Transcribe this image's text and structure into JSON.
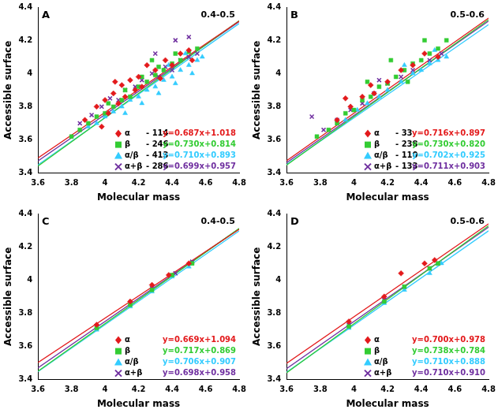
{
  "chart_data": [
    {
      "type": "scatter",
      "title": "A",
      "subtitle": "0.4-0.5",
      "x_label": "Molecular mass",
      "y_label": "Accessible surface",
      "xlim": [
        3.6,
        4.8
      ],
      "xticks": [
        3.6,
        3.8,
        4,
        4.2,
        4.4,
        4.6,
        4.8
      ],
      "ylim": [
        3.4,
        4.4
      ],
      "yticks": [
        3.4,
        3.6,
        3.8,
        4,
        4.2,
        4.4
      ],
      "grid": false,
      "legend": "lower right",
      "series": [
        {
          "name": "α",
          "color": "#e31a1c",
          "marker": "diamond",
          "count": 114,
          "count_label": "- 114",
          "fit": {
            "slope": 0.687,
            "intercept": 1.018,
            "label": "y=0.687x+1.018",
            "line_style": "solid"
          },
          "x": [
            3.88,
            3.95,
            4.0,
            4.02,
            4.05,
            4.08,
            4.1,
            4.12,
            4.15,
            4.18,
            4.2,
            4.22,
            4.25,
            4.3,
            4.33,
            4.36,
            4.4,
            4.45,
            4.5,
            4.52,
            3.98,
            4.06
          ],
          "values": [
            3.72,
            3.8,
            3.84,
            3.76,
            3.88,
            3.82,
            3.93,
            3.86,
            3.96,
            3.9,
            3.98,
            3.92,
            4.05,
            4.02,
            3.97,
            4.08,
            4.05,
            4.12,
            4.14,
            4.08,
            3.68,
            3.95
          ]
        },
        {
          "name": "β",
          "color": "#33cc33",
          "marker": "square",
          "count": 246,
          "count_label": "- 246",
          "fit": {
            "slope": 0.73,
            "intercept": 0.814,
            "label": "y=0.730x+0.814",
            "line_style": "solid"
          },
          "x": [
            3.8,
            3.85,
            3.9,
            3.95,
            4.0,
            4.02,
            4.05,
            4.1,
            4.12,
            4.15,
            4.2,
            4.22,
            4.25,
            4.3,
            4.32,
            4.35,
            4.4,
            4.42,
            4.45,
            4.5,
            4.55,
            4.28
          ],
          "values": [
            3.62,
            3.66,
            3.7,
            3.74,
            3.76,
            3.82,
            3.8,
            3.84,
            3.9,
            3.86,
            3.92,
            3.98,
            3.95,
            3.99,
            4.04,
            4.02,
            4.06,
            4.12,
            4.08,
            4.13,
            4.15,
            4.08
          ]
        },
        {
          "name": "α/β",
          "color": "#33ccff",
          "marker": "triangle",
          "count": 413,
          "count_label": "- 413",
          "fit": {
            "slope": 0.71,
            "intercept": 0.893,
            "label": "y=0.710x+0.893",
            "line_style": "solid"
          },
          "x": [
            3.9,
            3.95,
            4.0,
            4.05,
            4.1,
            4.12,
            4.15,
            4.2,
            4.22,
            4.25,
            4.3,
            4.32,
            4.35,
            4.4,
            4.42,
            4.45,
            4.5,
            4.52,
            4.55,
            4.58,
            4.38,
            4.48
          ],
          "values": [
            3.68,
            3.7,
            3.74,
            3.77,
            3.8,
            3.76,
            3.84,
            3.86,
            3.82,
            3.9,
            3.92,
            3.88,
            3.96,
            3.98,
            3.94,
            4.02,
            4.05,
            4.0,
            4.08,
            4.1,
            4.05,
            4.12
          ]
        },
        {
          "name": "α+β",
          "color": "#7030a0",
          "marker": "x",
          "count": 286,
          "count_label": "- 286",
          "fit": {
            "slope": 0.699,
            "intercept": 0.957,
            "label": "y=0.699x+0.957",
            "line_style": "solid"
          },
          "x": [
            3.85,
            3.92,
            3.98,
            4.03,
            4.08,
            4.12,
            4.18,
            4.22,
            4.28,
            4.32,
            4.36,
            4.4,
            4.45,
            4.5,
            4.55,
            4.3,
            4.42,
            4.5
          ],
          "values": [
            3.7,
            3.75,
            3.8,
            3.85,
            3.84,
            3.9,
            3.92,
            3.96,
            4.0,
            3.98,
            4.04,
            4.02,
            4.08,
            4.1,
            4.12,
            4.12,
            4.2,
            4.22
          ]
        }
      ]
    },
    {
      "type": "scatter",
      "title": "B",
      "subtitle": "0.5-0.6",
      "x_label": "Molecular mass",
      "y_label": "Accessible surface",
      "xlim": [
        3.6,
        4.8
      ],
      "xticks": [
        3.6,
        3.8,
        4,
        4.2,
        4.4,
        4.6,
        4.8
      ],
      "ylim": [
        3.4,
        4.4
      ],
      "yticks": [
        3.4,
        3.6,
        3.8,
        4,
        4.2,
        4.4
      ],
      "grid": false,
      "legend": "lower right",
      "series": [
        {
          "name": "α",
          "color": "#e31a1c",
          "marker": "diamond",
          "count": 33,
          "count_label": "- 33",
          "fit": {
            "slope": 0.716,
            "intercept": 0.897,
            "label": "y=0.716x+0.897",
            "line_style": "solid"
          },
          "x": [
            3.9,
            3.98,
            4.05,
            4.12,
            4.2,
            4.28,
            4.35,
            4.42,
            4.5,
            4.1,
            3.95
          ],
          "values": [
            3.72,
            3.8,
            3.86,
            3.88,
            3.95,
            4.02,
            4.05,
            4.12,
            4.1,
            3.93,
            3.85
          ]
        },
        {
          "name": "β",
          "color": "#33cc33",
          "marker": "square",
          "count": 238,
          "count_label": "- 238",
          "fit": {
            "slope": 0.73,
            "intercept": 0.82,
            "label": "y=0.730x+0.820",
            "line_style": "solid"
          },
          "x": [
            3.78,
            3.85,
            3.9,
            3.95,
            4.0,
            4.05,
            4.1,
            4.15,
            4.2,
            4.25,
            4.3,
            4.35,
            4.4,
            4.45,
            4.5,
            4.55,
            4.22,
            4.42,
            4.08,
            4.32
          ],
          "values": [
            3.62,
            3.66,
            3.7,
            3.76,
            3.78,
            3.84,
            3.86,
            3.92,
            3.94,
            3.98,
            4.02,
            4.06,
            4.08,
            4.12,
            4.15,
            4.2,
            4.08,
            4.2,
            3.95,
            3.95
          ]
        },
        {
          "name": "α/β",
          "color": "#33ccff",
          "marker": "triangle",
          "count": 110,
          "count_label": "- 110",
          "fit": {
            "slope": 0.702,
            "intercept": 0.925,
            "label": "y=0.702x+0.925",
            "line_style": "solid"
          },
          "x": [
            3.95,
            4.02,
            4.08,
            4.15,
            4.2,
            4.28,
            4.35,
            4.4,
            4.45,
            4.5,
            4.55,
            4.3,
            4.48
          ],
          "values": [
            3.72,
            3.78,
            3.82,
            3.86,
            3.9,
            3.95,
            4.0,
            4.02,
            4.06,
            4.08,
            4.1,
            4.05,
            4.14
          ]
        },
        {
          "name": "α+β",
          "color": "#7030a0",
          "marker": "x",
          "count": 133,
          "count_label": "- 133",
          "fit": {
            "slope": 0.711,
            "intercept": 0.903,
            "label": "y=0.711x+0.903",
            "line_style": "solid"
          },
          "x": [
            3.75,
            3.82,
            3.9,
            3.98,
            4.05,
            4.12,
            4.2,
            4.28,
            4.35,
            4.45,
            4.52,
            4.15
          ],
          "values": [
            3.74,
            3.66,
            3.72,
            3.78,
            3.82,
            3.88,
            3.94,
            3.98,
            4.02,
            4.08,
            4.12,
            3.96
          ]
        }
      ]
    },
    {
      "type": "scatter",
      "title": "C",
      "subtitle": "0.4-0.5",
      "x_label": "Molecular mass",
      "y_label": "Accessible surface",
      "xlim": [
        3.6,
        4.8
      ],
      "xticks": [
        3.6,
        3.8,
        4,
        4.2,
        4.4,
        4.6,
        4.8
      ],
      "ylim": [
        3.4,
        4.4
      ],
      "yticks": [
        3.4,
        3.6,
        3.8,
        4,
        4.2,
        4.4
      ],
      "grid": false,
      "legend": "lower right",
      "series": [
        {
          "name": "α",
          "color": "#e31a1c",
          "marker": "diamond",
          "fit": {
            "slope": 0.669,
            "intercept": 1.094,
            "label": "y=0.669x+1.094",
            "line_style": "solid"
          },
          "x": [
            3.95,
            4.15,
            4.28,
            4.38,
            4.5
          ],
          "values": [
            3.73,
            3.87,
            3.97,
            4.03,
            4.1
          ]
        },
        {
          "name": "β",
          "color": "#33cc33",
          "marker": "square",
          "fit": {
            "slope": 0.717,
            "intercept": 0.869,
            "label": "y=0.717x+0.869",
            "line_style": "solid"
          },
          "x": [
            3.95,
            4.15,
            4.28,
            4.4,
            4.52
          ],
          "values": [
            3.71,
            3.85,
            3.94,
            4.03,
            4.1
          ]
        },
        {
          "name": "α/β",
          "color": "#33ccff",
          "marker": "triangle",
          "fit": {
            "slope": 0.706,
            "intercept": 0.907,
            "label": "y=0.706x+0.907",
            "line_style": "solid"
          },
          "x": [
            3.95,
            4.15,
            4.28,
            4.4,
            4.5
          ],
          "values": [
            3.7,
            3.84,
            3.93,
            4.02,
            4.08
          ]
        },
        {
          "name": "α+β",
          "color": "#7030a0",
          "marker": "x",
          "fit": {
            "slope": 0.698,
            "intercept": 0.958,
            "label": "y=0.698x+0.958",
            "line_style": "solid"
          },
          "x": [
            3.95,
            4.15,
            4.28,
            4.42,
            4.52
          ],
          "values": [
            3.72,
            3.86,
            3.95,
            4.04,
            4.11
          ]
        }
      ]
    },
    {
      "type": "scatter",
      "title": "D",
      "subtitle": "0.5-0.6",
      "x_label": "Molecular mass",
      "y_label": "Accessible surface",
      "xlim": [
        3.6,
        4.8
      ],
      "xticks": [
        3.6,
        3.8,
        4,
        4.2,
        4.4,
        4.6,
        4.8
      ],
      "ylim": [
        3.4,
        4.4
      ],
      "yticks": [
        3.4,
        3.6,
        3.8,
        4,
        4.2,
        4.4
      ],
      "grid": false,
      "legend": "lower right",
      "series": [
        {
          "name": "α",
          "color": "#e31a1c",
          "marker": "diamond",
          "fit": {
            "slope": 0.7,
            "intercept": 0.978,
            "label": "y=0.700x+0.978",
            "line_style": "solid"
          },
          "x": [
            3.97,
            4.18,
            4.28,
            4.42,
            4.48
          ],
          "values": [
            3.75,
            3.9,
            4.04,
            4.1,
            4.12
          ]
        },
        {
          "name": "β",
          "color": "#33cc33",
          "marker": "square",
          "fit": {
            "slope": 0.738,
            "intercept": 0.784,
            "label": "y=0.738x+0.784",
            "line_style": "solid"
          },
          "x": [
            3.97,
            4.18,
            4.3,
            4.45,
            4.5
          ],
          "values": [
            3.72,
            3.87,
            3.96,
            4.07,
            4.1
          ]
        },
        {
          "name": "α/β",
          "color": "#33ccff",
          "marker": "triangle",
          "fit": {
            "slope": 0.71,
            "intercept": 0.888,
            "label": "y=0.710x+0.888",
            "line_style": "solid"
          },
          "x": [
            3.97,
            4.18,
            4.3,
            4.45,
            4.52
          ],
          "values": [
            3.71,
            3.86,
            3.94,
            4.04,
            4.1
          ]
        },
        {
          "name": "α+β",
          "color": "#7030a0",
          "marker": "x",
          "fit": {
            "slope": 0.71,
            "intercept": 0.91,
            "label": "y=0.710x+0.910",
            "line_style": "solid"
          },
          "x": [
            3.97,
            4.18,
            4.3,
            4.45,
            4.5
          ],
          "values": [
            3.73,
            3.88,
            3.96,
            4.07,
            4.1
          ]
        }
      ]
    }
  ]
}
